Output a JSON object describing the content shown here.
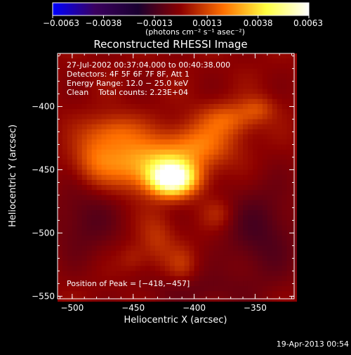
{
  "chart_data": {
    "type": "heatmap",
    "title": "Reconstructed RHESSI Image",
    "xlabel": "Heliocentric X (arcsec)",
    "ylabel": "Heliocentric Y (arcsec)",
    "xlim": [
      -512,
      -318
    ],
    "ylim": [
      -552,
      -358
    ],
    "x_ticks": [
      {
        "value": -500,
        "label": "−500"
      },
      {
        "value": -450,
        "label": "−450"
      },
      {
        "value": -400,
        "label": "−400"
      },
      {
        "value": -350,
        "label": "−350"
      }
    ],
    "y_ticks": [
      {
        "value": -400,
        "label": "−400"
      },
      {
        "value": -450,
        "label": "−450"
      },
      {
        "value": -500,
        "label": "−500"
      },
      {
        "value": -550,
        "label": "−550"
      }
    ],
    "info_lines": [
      "27-Jul-2002 00:37:04.000 to 00:40:38.000",
      "Detectors: 4F 5F 6F 7F 8F, Att 1",
      "Energy Range: 12.0 − 25.0 keV",
      "Clean    Total counts: 2.23E+04"
    ],
    "peak_label": "Position of Peak = [−418,−457]",
    "peak_position": [
      -418,
      -457
    ],
    "colorbar": {
      "range": [
        -0.0063,
        0.0063
      ],
      "ticks": [
        {
          "value": -0.0063,
          "label": "−0.0063"
        },
        {
          "value": -0.0038,
          "label": "−0.0038"
        },
        {
          "value": -0.0013,
          "label": "−0.0013"
        },
        {
          "value": 0.0013,
          "label": "0.0013"
        },
        {
          "value": 0.0038,
          "label": "0.0038"
        },
        {
          "value": 0.0063,
          "label": "0.0063"
        }
      ],
      "unit_label": "(photons cm⁻² s⁻¹ asec⁻²)",
      "colors": [
        "#0000ff",
        "#3a005e",
        "#1a0030",
        "#8c0000",
        "#ff7000",
        "#ffff40",
        "#ffffff"
      ]
    },
    "sources": [
      {
        "x": -418,
        "y": -457,
        "sigma_x": 13,
        "sigma_y": 9,
        "amp": 0.0063
      },
      {
        "x": -440,
        "y": -445,
        "sigma_x": 28,
        "sigma_y": 14,
        "amp": 0.003
      },
      {
        "x": -395,
        "y": -430,
        "sigma_x": 20,
        "sigma_y": 12,
        "amp": 0.0018
      },
      {
        "x": -465,
        "y": -420,
        "sigma_x": 16,
        "sigma_y": 10,
        "amp": 0.0015
      },
      {
        "x": -372,
        "y": -410,
        "sigma_x": 16,
        "sigma_y": 9,
        "amp": 0.0016
      },
      {
        "x": -348,
        "y": -402,
        "sigma_x": 10,
        "sigma_y": 7,
        "amp": 0.0011
      },
      {
        "x": -482,
        "y": -440,
        "sigma_x": 12,
        "sigma_y": 14,
        "amp": 0.0011
      },
      {
        "x": -430,
        "y": -505,
        "sigma_x": 10,
        "sigma_y": 14,
        "amp": 0.0009
      },
      {
        "x": -410,
        "y": -525,
        "sigma_x": 8,
        "sigma_y": 10,
        "amp": 0.0008
      },
      {
        "x": -450,
        "y": -520,
        "sigma_x": 8,
        "sigma_y": 8,
        "amp": 0.0006
      },
      {
        "x": -380,
        "y": -485,
        "sigma_x": 9,
        "sigma_y": 8,
        "amp": 0.0007
      },
      {
        "x": -345,
        "y": -500,
        "sigma_x": 22,
        "sigma_y": 28,
        "amp": -0.0012
      },
      {
        "x": -490,
        "y": -490,
        "sigma_x": 20,
        "sigma_y": 22,
        "amp": -0.001
      },
      {
        "x": -400,
        "y": -545,
        "sigma_x": 30,
        "sigma_y": 10,
        "amp": -0.0007
      }
    ],
    "grid": false,
    "legend": "none"
  },
  "footer": {
    "date_stamp": "19-Apr-2013 00:54"
  }
}
